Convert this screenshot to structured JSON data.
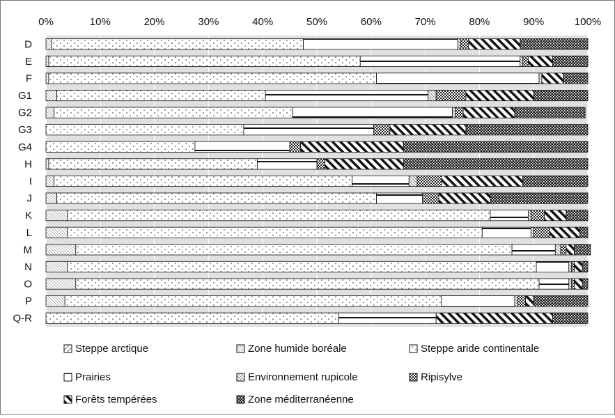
{
  "chart_data": {
    "type": "bar",
    "orientation": "horizontal",
    "stacked": "percent",
    "title": "",
    "xlabel": "",
    "ylabel": "",
    "xlim": [
      0,
      100
    ],
    "x_ticks": [
      "0%",
      "10%",
      "20%",
      "30%",
      "40%",
      "50%",
      "60%",
      "70%",
      "80%",
      "90%",
      "100%"
    ],
    "x_axis_position": "top",
    "grid": true,
    "legend_position": "bottom",
    "categories": [
      "D",
      "E",
      "F",
      "G1",
      "G2",
      "G3",
      "G4",
      "H",
      "I",
      "J",
      "K",
      "L",
      "M",
      "N",
      "O",
      "P",
      "Q-R"
    ],
    "series": [
      {
        "name": "Steppe arctique",
        "pattern": "diag-coarse",
        "values": [
          0,
          0,
          0,
          0,
          0,
          0,
          0,
          0,
          0,
          0,
          0,
          0,
          0,
          0,
          0,
          0,
          0
        ]
      },
      {
        "name": "Zone humide boréale",
        "pattern": "diag-fine",
        "values": [
          1,
          0.5,
          0.5,
          2,
          1.5,
          0,
          0,
          0.5,
          1.5,
          2,
          4,
          4,
          5.5,
          4,
          5.5,
          3.5,
          0
        ]
      },
      {
        "name": "Steppe aride continentale",
        "pattern": "dots",
        "values": [
          46.5,
          57.5,
          60.5,
          38.5,
          44,
          36.5,
          27.5,
          38.5,
          55,
          59,
          78,
          76.5,
          80.5,
          86.5,
          85.5,
          69.5,
          54
        ]
      },
      {
        "name": "Prairies",
        "pattern": "hlines",
        "values": [
          28.5,
          29.5,
          30,
          30,
          29.5,
          24,
          17.5,
          11,
          10.5,
          8.5,
          7,
          9,
          8,
          6,
          5.5,
          13.5,
          18
        ]
      },
      {
        "name": "Environnement rupicole",
        "pattern": "diag-dense",
        "values": [
          0.5,
          0.5,
          0.5,
          1.5,
          0.5,
          0,
          0,
          0,
          1.5,
          0,
          0.5,
          0.5,
          1,
          0.5,
          0.5,
          0.5,
          0
        ]
      },
      {
        "name": "Ripisylve",
        "pattern": "checker",
        "values": [
          1.5,
          1,
          0,
          5.5,
          1.5,
          3,
          2,
          1.5,
          4.5,
          3,
          2.5,
          3,
          1,
          0.5,
          0.5,
          1.5,
          0
        ]
      },
      {
        "name": "Forêts tempérées",
        "pattern": "diag-bold",
        "values": [
          9.5,
          4.5,
          4,
          12.5,
          9.5,
          14,
          19,
          14.5,
          15,
          9.5,
          4,
          5.5,
          1.5,
          1.5,
          1.5,
          1.5,
          21.5
        ]
      },
      {
        "name": "Zone méditerranéenne",
        "pattern": "dark-checker",
        "values": [
          12.5,
          6.5,
          4.5,
          10,
          13,
          22.5,
          34,
          34,
          12,
          18,
          4,
          1.5,
          3,
          1,
          1,
          10,
          6.5
        ]
      }
    ]
  }
}
